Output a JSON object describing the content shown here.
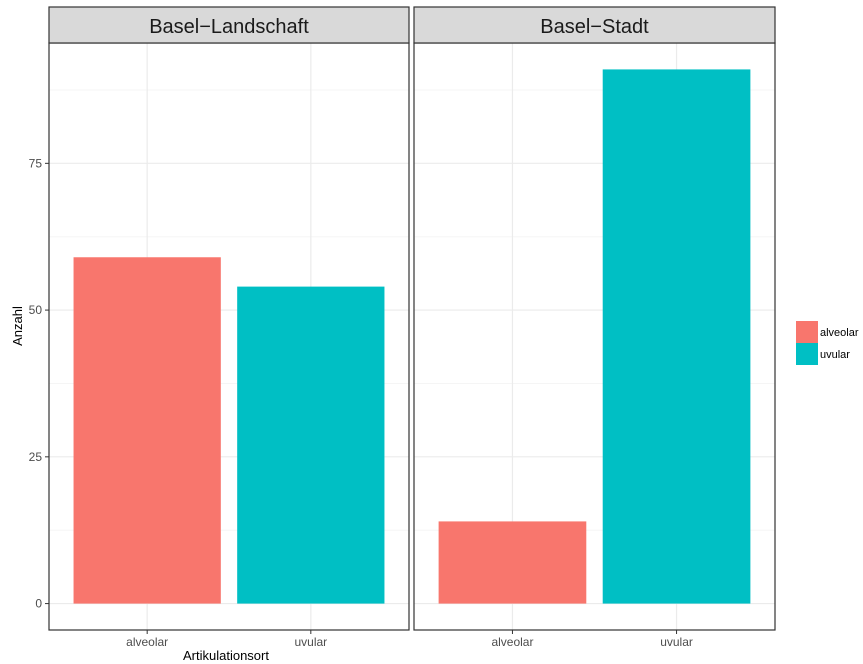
{
  "chart_data": {
    "type": "bar",
    "facets": [
      {
        "title": "Basel−Landschaft",
        "categories": [
          "alveolar",
          "uvular"
        ],
        "values": [
          59,
          54
        ]
      },
      {
        "title": "Basel−Stadt",
        "categories": [
          "alveolar",
          "uvular"
        ],
        "values": [
          14,
          91
        ]
      }
    ],
    "xlabel": "Artikulationsort",
    "ylabel": "Anzahl",
    "yticks": [
      0,
      25,
      50,
      75
    ],
    "ylim": [
      -4.5,
      95.5
    ],
    "grid": true,
    "legend": {
      "placement": "right",
      "entries": [
        {
          "label": "alveolar",
          "color": "#F8766D"
        },
        {
          "label": "uvular",
          "color": "#00BFC4"
        }
      ]
    },
    "colors": {
      "alveolar": "#F8766D",
      "uvular": "#00BFC4",
      "panel_border": "#333333",
      "strip_fill": "#D9D9D9",
      "grid_major": "#EBEBEB",
      "grid_minor": "#F5F5F5"
    }
  }
}
